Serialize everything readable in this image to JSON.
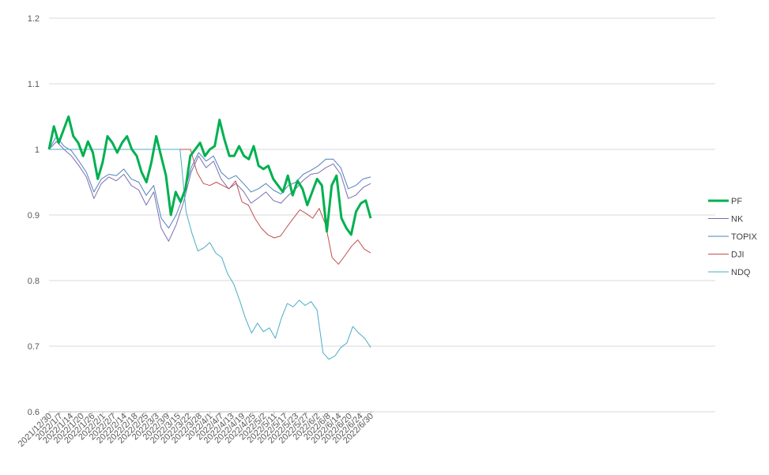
{
  "chart_data": {
    "type": "line",
    "title": "",
    "xlabel": "",
    "ylabel": "",
    "ylim": [
      0.6,
      1.2
    ],
    "yticks": [
      "0.6",
      "0.7",
      "0.8",
      "0.9",
      "1",
      "1.1",
      "1.2"
    ],
    "grid": true,
    "legend": "right",
    "x_labels": [
      "2021/12/30",
      "2022/1/7",
      "2022/1/14",
      "2022/1/20",
      "2022/1/26",
      "2022/2/1",
      "2022/2/7",
      "2022/2/14",
      "2022/2/18",
      "2022/2/25",
      "2022/3/3",
      "2022/3/9",
      "2022/3/15",
      "2022/3/22",
      "2022/3/28",
      "2022/4/1",
      "2022/4/7",
      "2022/4/13",
      "2022/4/19",
      "2022/4/25",
      "2022/5/2",
      "2022/5/11",
      "2022/5/17",
      "2022/5/23",
      "2022/5/27",
      "2022/6/2",
      "2022/6/8",
      "2022/6/14",
      "2022/6/20",
      "2022/6/24",
      "2022/6/30"
    ],
    "series": [
      {
        "name": "NK",
        "color": "#7E6DAE",
        "width": 1,
        "values": [
          1.0,
          1.012,
          1.0,
          0.99,
          0.975,
          0.958,
          0.925,
          0.948,
          0.958,
          0.952,
          0.962,
          0.945,
          0.938,
          0.915,
          0.935,
          0.88,
          0.86,
          0.885,
          0.92,
          0.965,
          0.99,
          0.972,
          0.982,
          0.955,
          0.94,
          0.948,
          0.936,
          0.918,
          0.926,
          0.935,
          0.922,
          0.918,
          0.93,
          0.94,
          0.953,
          0.962,
          0.964,
          0.972,
          0.978,
          0.962,
          0.925,
          0.93,
          0.942,
          0.948
        ]
      },
      {
        "name": "TOPIX",
        "color": "#4F81BD",
        "width": 1,
        "values": [
          1.0,
          1.02,
          1.005,
          0.998,
          0.982,
          0.965,
          0.935,
          0.955,
          0.962,
          0.96,
          0.97,
          0.955,
          0.95,
          0.93,
          0.945,
          0.895,
          0.88,
          0.9,
          0.93,
          0.972,
          0.995,
          0.982,
          0.99,
          0.965,
          0.955,
          0.96,
          0.948,
          0.935,
          0.94,
          0.948,
          0.938,
          0.932,
          0.945,
          0.95,
          0.962,
          0.968,
          0.975,
          0.985,
          0.985,
          0.972,
          0.94,
          0.945,
          0.955,
          0.958
        ]
      },
      {
        "name": "DJI",
        "color": "#C0504D",
        "width": 1,
        "values": [
          1.0,
          1.0,
          1.0,
          1.0,
          1.0,
          1.0,
          1.0,
          1.0,
          1.0,
          1.0,
          1.0,
          1.0,
          1.0,
          1.0,
          1.0,
          1.0,
          1.0,
          1.0,
          1.0,
          1.0,
          1.0,
          1.0,
          1.0,
          0.965,
          0.948,
          0.945,
          0.95,
          0.945,
          0.94,
          0.952,
          0.92,
          0.915,
          0.895,
          0.88,
          0.87,
          0.865,
          0.868,
          0.882,
          0.895,
          0.908,
          0.902,
          0.895,
          0.91,
          0.885,
          0.835,
          0.825,
          0.838,
          0.852,
          0.862,
          0.848,
          0.842
        ]
      },
      {
        "name": "NDQ",
        "color": "#4BACC6",
        "width": 1,
        "values": [
          1.0,
          1.0,
          1.0,
          1.0,
          1.0,
          1.0,
          1.0,
          1.0,
          1.0,
          1.0,
          1.0,
          1.0,
          1.0,
          1.0,
          1.0,
          1.0,
          1.0,
          1.0,
          1.0,
          1.0,
          1.0,
          1.0,
          1.0,
          0.905,
          0.872,
          0.845,
          0.85,
          0.858,
          0.842,
          0.835,
          0.81,
          0.795,
          0.77,
          0.742,
          0.72,
          0.735,
          0.722,
          0.728,
          0.712,
          0.742,
          0.765,
          0.76,
          0.77,
          0.762,
          0.768,
          0.755,
          0.69,
          0.68,
          0.685,
          0.698,
          0.705,
          0.73,
          0.72,
          0.712,
          0.698
        ]
      },
      {
        "name": "PF",
        "color": "#00B050",
        "width": 3,
        "values": [
          1.0,
          1.035,
          1.01,
          1.03,
          1.05,
          1.02,
          1.01,
          0.99,
          1.012,
          0.995,
          0.955,
          0.98,
          1.02,
          1.01,
          0.995,
          1.01,
          1.02,
          1.0,
          0.99,
          0.965,
          0.95,
          0.98,
          1.02,
          0.99,
          0.96,
          0.9,
          0.935,
          0.92,
          0.94,
          0.99,
          1.0,
          1.01,
          0.99,
          1.0,
          1.005,
          1.045,
          1.015,
          0.99,
          0.99,
          1.005,
          0.99,
          0.985,
          1.005,
          0.975,
          0.97,
          0.975,
          0.955,
          0.945,
          0.935,
          0.96,
          0.93,
          0.952,
          0.94,
          0.915,
          0.935,
          0.955,
          0.945,
          0.875,
          0.945,
          0.96,
          0.895,
          0.88,
          0.87,
          0.905,
          0.918,
          0.922,
          0.895
        ]
      }
    ]
  }
}
